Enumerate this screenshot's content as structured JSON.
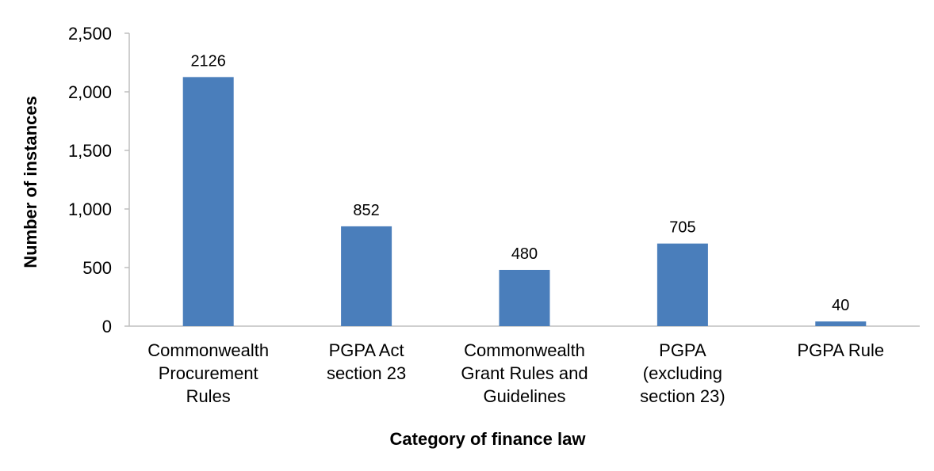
{
  "chart_data": {
    "type": "bar",
    "title": "",
    "xlabel": "Category of finance law",
    "ylabel": "Number of instances",
    "categories": [
      [
        "Commonwealth",
        "Procurement",
        "Rules"
      ],
      [
        "PGPA Act",
        "section 23"
      ],
      [
        "Commonwealth",
        "Grant Rules and",
        "Guidelines"
      ],
      [
        "PGPA",
        "(excluding",
        "section 23)"
      ],
      [
        "PGPA Rule"
      ]
    ],
    "values": [
      2126,
      852,
      480,
      705,
      40
    ],
    "data_labels": [
      "2126",
      "852",
      "480",
      "705",
      "40"
    ],
    "ylim": [
      0,
      2500
    ],
    "yticks": [
      0,
      500,
      1000,
      1500,
      2000,
      2500
    ],
    "ytick_labels": [
      "0",
      "500",
      "1,000",
      "1,500",
      "2,000",
      "2,500"
    ],
    "bar_color": "#4a7ebb",
    "axis_color": "#bfbfbf",
    "grid": false,
    "legend": "none"
  }
}
